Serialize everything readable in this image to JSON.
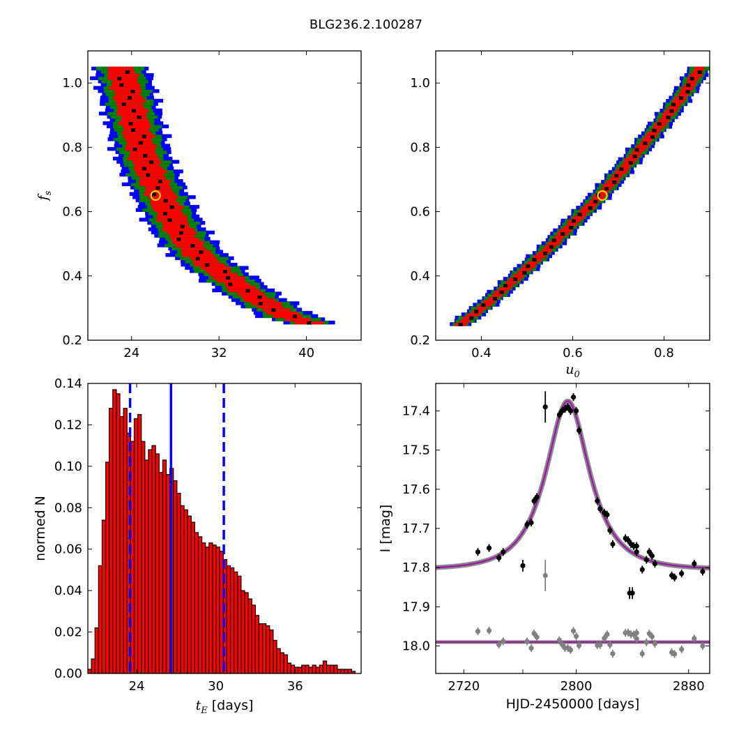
{
  "figure_title": "BLG236.2.100287",
  "chart_data": [
    {
      "type": "heatmap",
      "panel": "top-left",
      "xlabel": "",
      "ylabel": "f_s",
      "ylabel_display": "f",
      "ylabel_sub": "s",
      "xlim": [
        20,
        45
      ],
      "ylim": [
        0.2,
        1.1
      ],
      "xticks": [
        24,
        32,
        40
      ],
      "yticks": [
        0.2,
        0.4,
        0.6,
        0.8,
        1.0
      ],
      "colors": {
        "black": "#000000",
        "red": "#ff0000",
        "green": "#008000",
        "blue": "#0000ff"
      },
      "confidence_bands": {
        "centerline": [
          [
            23.0,
            1.05
          ],
          [
            24.0,
            0.92
          ],
          [
            25.0,
            0.78
          ],
          [
            26.0,
            0.7
          ],
          [
            27.0,
            0.63
          ],
          [
            28.0,
            0.56
          ],
          [
            29.0,
            0.51
          ],
          [
            30.0,
            0.47
          ],
          [
            31.0,
            0.44
          ],
          [
            32.0,
            0.415
          ],
          [
            33.0,
            0.39
          ],
          [
            34.0,
            0.365
          ],
          [
            35.0,
            0.34
          ],
          [
            36.0,
            0.32
          ],
          [
            37.0,
            0.3
          ],
          [
            38.0,
            0.28
          ],
          [
            39.5,
            0.26
          ],
          [
            41.0,
            0.25
          ]
        ],
        "half_widths_x": {
          "red": 1.3,
          "green": 2.0,
          "blue": 2.6
        }
      },
      "best_fit_marker": {
        "x": 26.2,
        "y": 0.65,
        "color": "#ffd700"
      }
    },
    {
      "type": "heatmap",
      "panel": "top-right",
      "xlabel": "u_0",
      "xlabel_display": "u",
      "xlabel_sub": "0",
      "ylabel": "",
      "xlim": [
        0.3,
        0.9
      ],
      "ylim": [
        0.2,
        1.1
      ],
      "xticks": [
        0.4,
        0.6,
        0.8
      ],
      "yticks": [
        0.2,
        0.4,
        0.6,
        0.8,
        1.0
      ],
      "colors": {
        "black": "#000000",
        "red": "#ff0000",
        "green": "#008000",
        "blue": "#0000ff"
      },
      "confidence_bands": {
        "centerline": [
          [
            0.35,
            0.245
          ],
          [
            0.4,
            0.3
          ],
          [
            0.45,
            0.36
          ],
          [
            0.5,
            0.425
          ],
          [
            0.55,
            0.49
          ],
          [
            0.6,
            0.565
          ],
          [
            0.65,
            0.635
          ],
          [
            0.7,
            0.715
          ],
          [
            0.75,
            0.8
          ],
          [
            0.8,
            0.885
          ],
          [
            0.85,
            0.98
          ],
          [
            0.88,
            1.05
          ]
        ],
        "half_widths_x": {
          "red": 0.012,
          "green": 0.02,
          "blue": 0.026
        }
      },
      "best_fit_marker": {
        "x": 0.665,
        "y": 0.65,
        "color": "#ffd700"
      }
    },
    {
      "type": "bar",
      "panel": "bottom-left",
      "xlabel": "t_E  [days]",
      "xlabel_display_main": "t",
      "xlabel_display_sub": "E",
      "xlabel_unit": " [days]",
      "ylabel": "normed N",
      "xlim": [
        20.3,
        41.0
      ],
      "ylim": [
        0.0,
        0.14
      ],
      "xticks": [
        24,
        30,
        36
      ],
      "yticks": [
        0.0,
        0.02,
        0.04,
        0.06,
        0.08,
        0.1,
        0.12,
        0.14
      ],
      "bar_color": "#ff0000",
      "bin_start": 20.3,
      "bin_width": 0.27,
      "values": [
        0.002,
        0.007,
        0.022,
        0.052,
        0.074,
        0.102,
        0.128,
        0.137,
        0.135,
        0.124,
        0.128,
        0.116,
        0.112,
        0.123,
        0.125,
        0.112,
        0.103,
        0.108,
        0.11,
        0.106,
        0.097,
        0.103,
        0.096,
        0.099,
        0.093,
        0.087,
        0.081,
        0.079,
        0.076,
        0.073,
        0.068,
        0.066,
        0.063,
        0.061,
        0.063,
        0.062,
        0.061,
        0.059,
        0.055,
        0.052,
        0.051,
        0.049,
        0.047,
        0.04,
        0.039,
        0.036,
        0.033,
        0.028,
        0.024,
        0.024,
        0.023,
        0.021,
        0.016,
        0.012,
        0.01,
        0.009,
        0.005,
        0.004,
        0.003,
        0.003,
        0.004,
        0.004,
        0.003,
        0.004,
        0.003,
        0.004,
        0.006,
        0.004,
        0.004,
        0.004,
        0.002,
        0.002,
        0.002,
        0.002,
        0.001
      ],
      "vlines": [
        {
          "x": 23.5,
          "style": "dashed",
          "color": "#0000ff"
        },
        {
          "x": 26.6,
          "style": "solid",
          "color": "#0000ff"
        },
        {
          "x": 30.6,
          "style": "dashed",
          "color": "#0000ff"
        }
      ]
    },
    {
      "type": "scatter",
      "panel": "bottom-right",
      "xlabel": "HJD-2450000 [days]",
      "ylabel": "I [mag]",
      "xlim": [
        2700,
        2895
      ],
      "ylim": [
        18.07,
        17.33
      ],
      "xticks": [
        2720,
        2800,
        2880
      ],
      "yticks": [
        17.4,
        17.5,
        17.6,
        17.7,
        17.8,
        17.9,
        18.0
      ],
      "model": {
        "baseline": 17.805,
        "peak": 17.375,
        "t0": 2794,
        "tE": 26.5,
        "u0": 0.66
      },
      "residual_baseline": 17.99,
      "colors": {
        "data": "#000000",
        "residual": "#808080",
        "model": "#9b1fa5",
        "model_band": "#808080"
      },
      "series": [
        {
          "points": [
            [
              2730,
              17.76,
              0.01
            ],
            [
              2738,
              17.75,
              0.01
            ],
            [
              2745,
              17.775,
              0.01
            ],
            [
              2748,
              17.76,
              0.01
            ],
            [
              2762,
              17.795,
              0.015
            ],
            [
              2765,
              17.69,
              0.01
            ],
            [
              2768,
              17.685,
              0.01
            ],
            [
              2770,
              17.63,
              0.01
            ],
            [
              2772,
              17.62,
              0.01
            ],
            [
              2778,
              17.39,
              0.04
            ],
            [
              2788,
              17.41,
              0.01
            ],
            [
              2790,
              17.4,
              0.01
            ],
            [
              2792,
              17.395,
              0.01
            ],
            [
              2794,
              17.39,
              0.01
            ],
            [
              2796,
              17.4,
              0.01
            ],
            [
              2798,
              17.365,
              0.01
            ],
            [
              2800,
              17.4,
              0.01
            ],
            [
              2802,
              17.45,
              0.01
            ],
            [
              2815,
              17.63,
              0.01
            ],
            [
              2817,
              17.65,
              0.01
            ],
            [
              2820,
              17.66,
              0.01
            ],
            [
              2822,
              17.665,
              0.01
            ],
            [
              2824,
              17.705,
              0.01
            ],
            [
              2826,
              17.74,
              0.01
            ],
            [
              2835,
              17.725,
              0.01
            ],
            [
              2837,
              17.73,
              0.01
            ],
            [
              2839,
              17.74,
              0.01
            ],
            [
              2841,
              17.745,
              0.01
            ],
            [
              2843,
              17.76,
              0.01
            ],
            [
              2847,
              17.805,
              0.01
            ],
            [
              2850,
              17.78,
              0.01
            ],
            [
              2852,
              17.76,
              0.01
            ],
            [
              2854,
              17.77,
              0.01
            ],
            [
              2856,
              17.79,
              0.01
            ],
            [
              2838,
              17.865,
              0.015
            ],
            [
              2840,
              17.865,
              0.015
            ],
            [
              2843,
              17.745,
              0.01
            ],
            [
              2868,
              17.82,
              0.01
            ],
            [
              2870,
              17.825,
              0.01
            ],
            [
              2875,
              17.815,
              0.01
            ],
            [
              2884,
              17.79,
              0.01
            ],
            [
              2890,
              17.81,
              0.01
            ]
          ]
        }
      ]
    }
  ]
}
